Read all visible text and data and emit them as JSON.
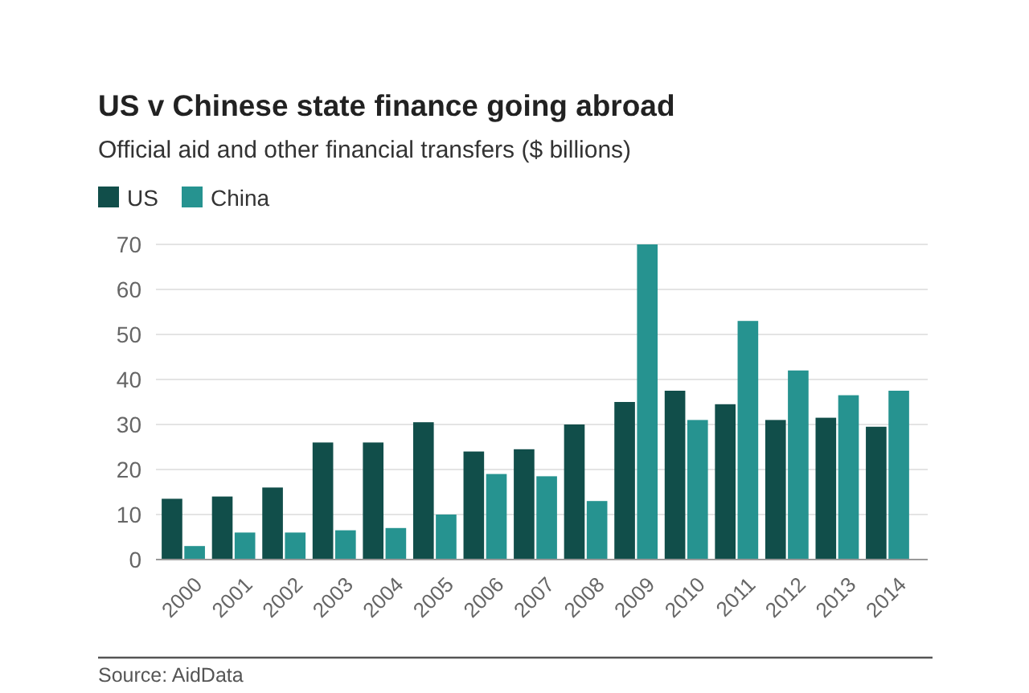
{
  "chart_data": {
    "type": "bar",
    "title": "US v Chinese state finance going abroad",
    "subtitle": "Official aid and other financial transfers ($ billions)",
    "categories": [
      "2000",
      "2001",
      "2002",
      "2003",
      "2004",
      "2005",
      "2006",
      "2007",
      "2008",
      "2009",
      "2010",
      "2011",
      "2012",
      "2013",
      "2014"
    ],
    "series": [
      {
        "name": "US",
        "color": "#114e4a",
        "values": [
          13.5,
          14,
          16,
          26,
          26,
          30.5,
          24,
          24.5,
          30,
          35,
          37.5,
          34.5,
          31,
          31.5,
          29.5
        ]
      },
      {
        "name": "China",
        "color": "#269390",
        "values": [
          3,
          6,
          6,
          6.5,
          7,
          10,
          19,
          18.5,
          13,
          70,
          31,
          53,
          42,
          36.5,
          37.5
        ]
      }
    ],
    "ylim": [
      0,
      70
    ],
    "yticks": [
      0,
      10,
      20,
      30,
      40,
      50,
      60,
      70
    ],
    "grid": "y",
    "legend": "top left",
    "annotations": [
      "Source: AidData"
    ]
  }
}
